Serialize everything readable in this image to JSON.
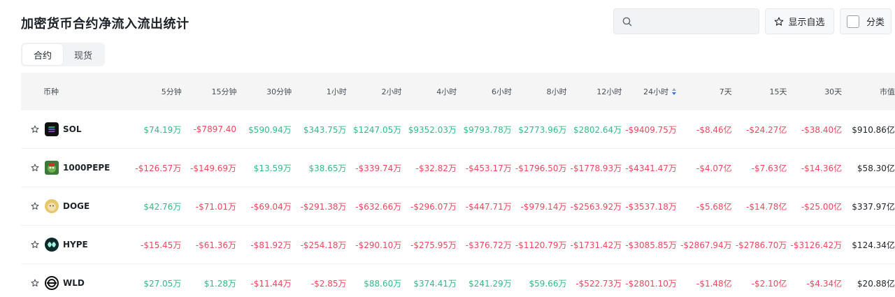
{
  "page": {
    "title": "加密货币合约净流入流出统计"
  },
  "search": {
    "placeholder": ""
  },
  "toolbar": {
    "favorites_label": "显示自选",
    "category_label": "分类"
  },
  "tabs": [
    {
      "label": "合约",
      "active": true
    },
    {
      "label": "现货",
      "active": false
    }
  ],
  "table": {
    "headers": {
      "coin": "币种",
      "m5": "5分钟",
      "m15": "15分钟",
      "m30": "30分钟",
      "h1": "1小时",
      "h2": "2小时",
      "h4": "4小时",
      "h6": "6小时",
      "h8": "8小时",
      "h12": "12小时",
      "h24": "24小时",
      "d7": "7天",
      "d15": "15天",
      "d30": "30天",
      "cap": "市值"
    },
    "rows": [
      {
        "coin": "SOL",
        "logo": "sol-logo",
        "values": [
          "$74.19万",
          "-$7897.40",
          "$590.94万",
          "$343.75万",
          "$1247.05万",
          "$9352.03万",
          "$9793.78万",
          "$2773.96万",
          "$2802.64万",
          "-$9409.75万",
          "-$8.46亿",
          "-$24.27亿",
          "-$38.40亿"
        ],
        "cap": "$910.86亿"
      },
      {
        "coin": "1000PEPE",
        "logo": "pepe-logo",
        "values": [
          "-$126.57万",
          "-$149.69万",
          "$13.59万",
          "$38.65万",
          "-$339.74万",
          "-$32.82万",
          "-$453.17万",
          "-$1796.50万",
          "-$1778.93万",
          "-$4341.47万",
          "-$4.07亿",
          "-$7.63亿",
          "-$14.36亿"
        ],
        "cap": "$58.30亿"
      },
      {
        "coin": "DOGE",
        "logo": "doge-logo",
        "values": [
          "$42.76万",
          "-$71.01万",
          "-$69.04万",
          "-$291.38万",
          "-$632.66万",
          "-$296.07万",
          "-$447.71万",
          "-$979.14万",
          "-$2563.92万",
          "-$3537.18万",
          "-$5.68亿",
          "-$14.78亿",
          "-$25.00亿"
        ],
        "cap": "$337.97亿"
      },
      {
        "coin": "HYPE",
        "logo": "hype-logo",
        "values": [
          "-$15.45万",
          "-$61.36万",
          "-$81.92万",
          "-$254.18万",
          "-$290.10万",
          "-$275.95万",
          "-$376.72万",
          "-$1120.79万",
          "-$1731.42万",
          "-$3085.85万",
          "-$2867.94万",
          "-$2786.70万",
          "-$3126.42万"
        ],
        "cap": "$124.34亿"
      },
      {
        "coin": "WLD",
        "logo": "wld-logo",
        "values": [
          "$27.05万",
          "$1.28万",
          "-$11.44万",
          "-$2.85万",
          "$88.60万",
          "$374.41万",
          "$241.29万",
          "$59.66万",
          "-$522.73万",
          "-$2801.10万",
          "-$1.48亿",
          "-$2.10亿",
          "-$4.34亿"
        ],
        "cap": "$20.88亿"
      }
    ]
  },
  "colors": {
    "positive": "#2ebd85",
    "negative": "#f6465d"
  }
}
